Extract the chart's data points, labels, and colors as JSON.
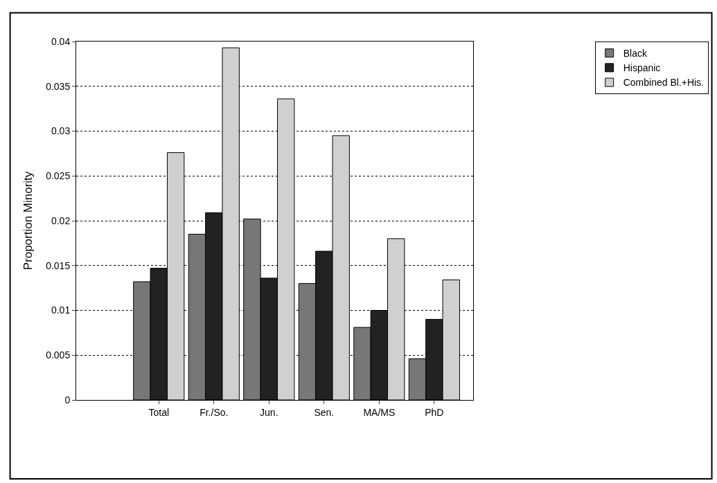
{
  "chart_data": {
    "type": "bar",
    "ylabel": "Proportion Minority",
    "categories": [
      "Total",
      "Fr./So.",
      "Jun.",
      "Sen.",
      "MA/MS",
      "PhD"
    ],
    "series": [
      {
        "name": "Black",
        "color": "#777777",
        "values": [
          0.0132,
          0.0185,
          0.0202,
          0.013,
          0.0081,
          0.0046
        ]
      },
      {
        "name": "Hispanic",
        "color": "#222222",
        "values": [
          0.0147,
          0.0209,
          0.0136,
          0.0166,
          0.01,
          0.009
        ]
      },
      {
        "name": "Combined Bl.+His.",
        "color": "#d0d0d0",
        "values": [
          0.0276,
          0.0393,
          0.0336,
          0.0295,
          0.018,
          0.0134
        ]
      }
    ],
    "ylim": [
      0,
      0.04
    ],
    "yticks": [
      0,
      0.005,
      0.01,
      0.015,
      0.02,
      0.025,
      0.03,
      0.035,
      0.04
    ],
    "grid": "y",
    "legend": "top right"
  }
}
